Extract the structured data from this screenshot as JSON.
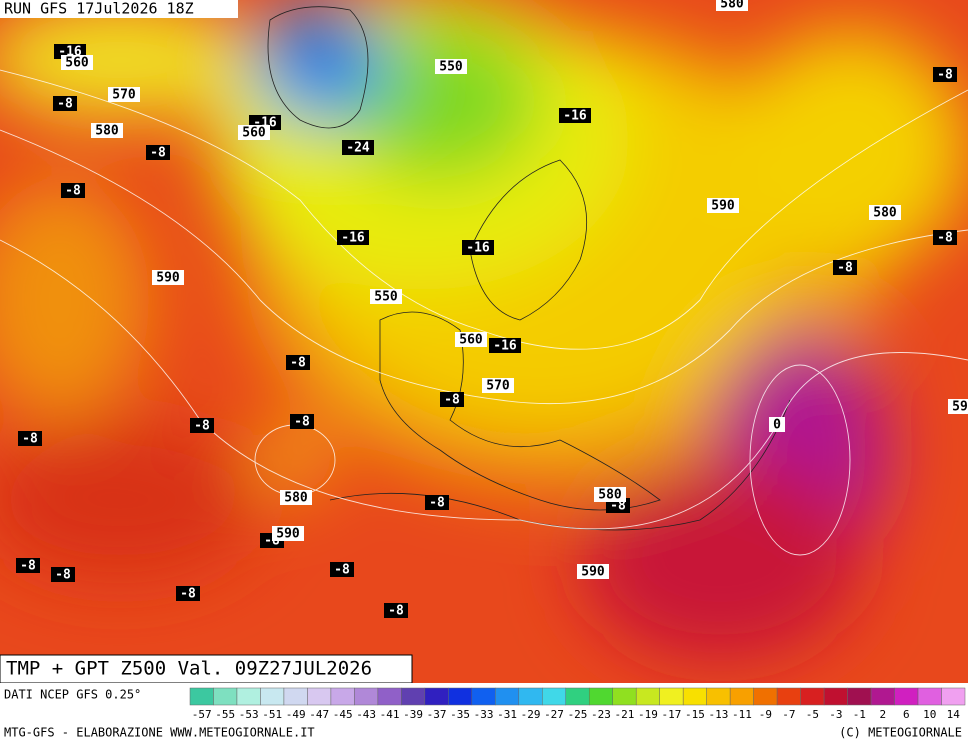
{
  "header": {
    "run": "RUN GFS 17Jul2026 18Z"
  },
  "title": "TMP + GPT Z500 Val. 09Z27JUL2026",
  "footer": {
    "source": "DATI NCEP GFS 0.25°",
    "credits_left": "MTG-GFS - ELABORAZIONE WWW.METEOGIORNALE.IT",
    "credits_right": "(C) METEOGIORNALE"
  },
  "map": {
    "temperature_labels": [
      -16,
      -8,
      -8,
      -8,
      -16,
      -24,
      -16,
      -8,
      -16,
      -16,
      -8,
      -8,
      -8,
      -16,
      -8,
      -8,
      -8,
      -8,
      -8,
      -8,
      -8,
      -8,
      -8,
      -8,
      -8,
      -8
    ],
    "height_labels": [
      580,
      560,
      570,
      580,
      560,
      550,
      590,
      580,
      590,
      550,
      560,
      570,
      0,
      59,
      580,
      590,
      580,
      590
    ]
  },
  "legend": {
    "ticks": [
      -57,
      -55,
      -53,
      -51,
      -49,
      -47,
      -45,
      -43,
      -41,
      -39,
      -37,
      -35,
      -33,
      -31,
      -29,
      -27,
      -25,
      -23,
      -21,
      -19,
      -17,
      -15,
      -13,
      -11,
      -9,
      -7,
      -5,
      -3,
      -1,
      2,
      6,
      10,
      14
    ],
    "colors": [
      "#3cc8a0",
      "#7ee0c0",
      "#b0f0e0",
      "#c8e8f0",
      "#d0d8f0",
      "#d8c8f0",
      "#c8a8e8",
      "#b088d8",
      "#9060c8",
      "#6040b0",
      "#3020c0",
      "#1030e0",
      "#1060f0",
      "#2090f0",
      "#30b8f0",
      "#40d8e8",
      "#30d080",
      "#50d830",
      "#90e020",
      "#c8e820",
      "#f0f020",
      "#f8e000",
      "#f8c000",
      "#f8a000",
      "#f07000",
      "#e84010",
      "#d82020",
      "#c01030",
      "#a01050",
      "#b01890",
      "#d020c0",
      "#e060e0",
      "#f0a0f0"
    ]
  }
}
